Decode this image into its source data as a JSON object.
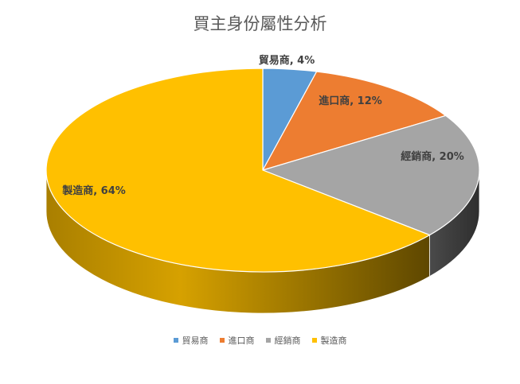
{
  "chart_data": {
    "type": "pie",
    "title": "買主身份屬性分析",
    "slices": [
      {
        "label": "貿易商",
        "value": 4,
        "data_label": "貿易商, 4%",
        "color": "#5b9bd5",
        "side_color": "#3f6f9c"
      },
      {
        "label": "進口商",
        "value": 12,
        "data_label": "進口商, 12%",
        "color": "#ed7d31",
        "side_color": "#a9561f"
      },
      {
        "label": "經銷商",
        "value": 20,
        "data_label": "經銷商, 20%",
        "color": "#a5a5a5",
        "side_color": "#474747"
      },
      {
        "label": "製造商",
        "value": 64,
        "data_label": "製造商, 64%",
        "color": "#ffc000",
        "side_color": "#b58a00"
      }
    ],
    "legend_position": "bottom",
    "style": "3d"
  }
}
